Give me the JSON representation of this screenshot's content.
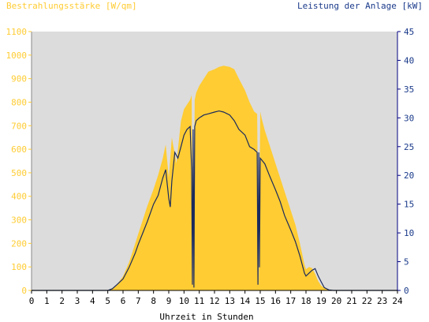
{
  "chart_data": {
    "type": "area",
    "title_left": "Bestrahlungsstärke [W/qm]",
    "title_right": "Leistung der Anlage [kW]",
    "xlabel": "Uhrzeit in Stunden",
    "xlim": [
      0,
      24
    ],
    "x_ticks": [
      "0",
      "1",
      "2",
      "3",
      "4",
      "5",
      "6",
      "7",
      "8",
      "9",
      "10",
      "11",
      "12",
      "13",
      "14",
      "15",
      "16",
      "17",
      "18",
      "19",
      "20",
      "21",
      "22",
      "23",
      "24"
    ],
    "y_left": {
      "lim": [
        0,
        1100
      ],
      "ticks": [
        "0",
        "100",
        "200",
        "300",
        "400",
        "500",
        "600",
        "700",
        "800",
        "900",
        "1000",
        "1100"
      ]
    },
    "y_right": {
      "lim": [
        0,
        45
      ],
      "ticks": [
        "0",
        "5",
        "10",
        "15",
        "20",
        "25",
        "30",
        "35",
        "40",
        "45"
      ]
    },
    "grid": false,
    "colors": {
      "irradiance": "#ffcc33",
      "power": "#1a2a5c",
      "plot_bg": "#dcdcdc",
      "left_axis_text": "#ffcc33",
      "right_axis_text": "#1a3a8a",
      "axis_line": "#000080"
    },
    "series": [
      {
        "name": "Bestrahlungsstärke [W/qm]",
        "axis": "left",
        "x": [
          0,
          5.0,
          5.3,
          5.6,
          6.0,
          6.4,
          6.8,
          7.0,
          7.3,
          7.6,
          8.0,
          8.3,
          8.6,
          8.8,
          9.0,
          9.2,
          9.5,
          9.8,
          10.0,
          10.2,
          10.4,
          10.5,
          10.6,
          10.7,
          10.8,
          11.0,
          11.3,
          11.6,
          12.0,
          12.3,
          12.6,
          13.0,
          13.3,
          13.6,
          14.0,
          14.3,
          14.6,
          14.8,
          14.9,
          15.0,
          15.1,
          15.3,
          15.6,
          16.0,
          16.3,
          16.6,
          17.0,
          17.3,
          17.6,
          17.9,
          18.0,
          18.2,
          18.4,
          18.6,
          18.8,
          19.0,
          19.2,
          19.5,
          19.8,
          20.0,
          24
        ],
        "y": [
          0,
          0,
          10,
          25,
          60,
          120,
          200,
          240,
          300,
          360,
          430,
          490,
          560,
          620,
          480,
          650,
          540,
          720,
          770,
          790,
          810,
          830,
          20,
          810,
          840,
          870,
          900,
          930,
          940,
          950,
          955,
          950,
          940,
          900,
          850,
          800,
          760,
          750,
          20,
          760,
          730,
          680,
          620,
          540,
          480,
          420,
          340,
          280,
          200,
          110,
          90,
          100,
          95,
          70,
          40,
          20,
          10,
          3,
          0,
          0,
          0
        ]
      },
      {
        "name": "Leistung der Anlage [kW]",
        "axis": "right",
        "x": [
          0,
          5.0,
          5.3,
          5.6,
          6.0,
          6.4,
          6.8,
          7.0,
          7.3,
          7.6,
          8.0,
          8.3,
          8.6,
          8.8,
          9.0,
          9.1,
          9.2,
          9.4,
          9.6,
          9.8,
          10.0,
          10.2,
          10.4,
          10.5,
          10.55,
          10.6,
          10.65,
          10.7,
          10.8,
          11.0,
          11.3,
          11.6,
          12.0,
          12.3,
          12.6,
          13.0,
          13.3,
          13.6,
          14.0,
          14.3,
          14.6,
          14.8,
          14.85,
          14.9,
          14.95,
          15.0,
          15.3,
          15.6,
          16.0,
          16.3,
          16.6,
          17.0,
          17.3,
          17.6,
          17.9,
          18.0,
          18.2,
          18.4,
          18.6,
          18.8,
          19.0,
          19.2,
          19.5,
          19.8,
          20.0,
          24
        ],
        "y": [
          0,
          0,
          0.3,
          1,
          2,
          4,
          6.5,
          8,
          10,
          12,
          15,
          16.5,
          19.5,
          21,
          16,
          14.5,
          19,
          24,
          23,
          25,
          27,
          28,
          28.5,
          21,
          1,
          28,
          0.5,
          28.5,
          29.5,
          30,
          30.5,
          30.7,
          31,
          31.2,
          31,
          30.5,
          29.5,
          28,
          27,
          25,
          24.5,
          24,
          1,
          24,
          4,
          23,
          22,
          20,
          17.5,
          15.5,
          13,
          10.5,
          8.5,
          6,
          3,
          2.5,
          3,
          3.5,
          3.8,
          2.5,
          1.5,
          0.5,
          0.1,
          0,
          0,
          0
        ]
      }
    ]
  }
}
